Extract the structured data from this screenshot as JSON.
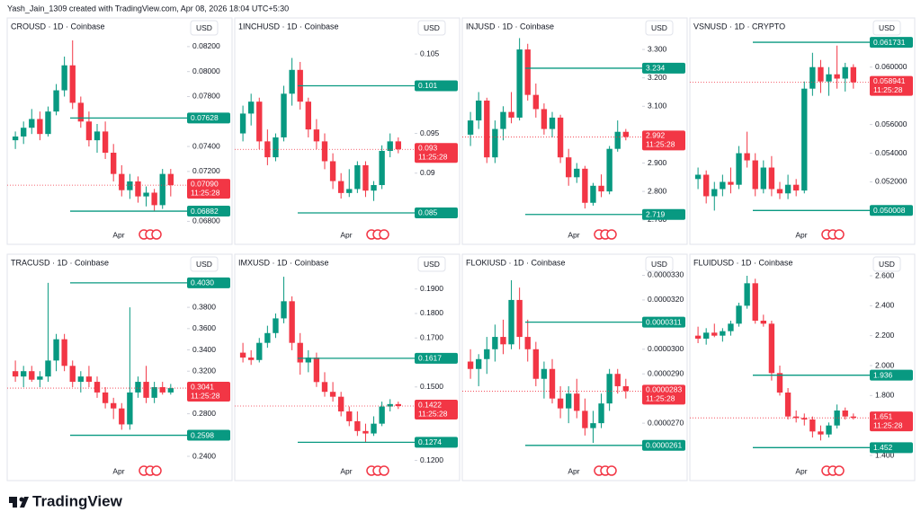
{
  "header": "Yash_Jain_1309 created with TradingView.com, Apr 08, 2026 18:04 UTC+5:30",
  "footer": "TradingView",
  "chart_data": [
    {
      "type": "candlestick",
      "title": "CROUSD · 1D · Coinbase",
      "currency": "USD",
      "x_label": "Apr",
      "up_color": "#089981",
      "down_color": "#f23645",
      "level_color": "#089981",
      "last_color": "#f23645",
      "countdown": "11:25:28",
      "ylim": [
        0.0676,
        0.083
      ],
      "yticks": [
        {
          "value": 0.082,
          "label": "0.08200"
        },
        {
          "value": 0.08,
          "label": "0.08000"
        },
        {
          "value": 0.078,
          "label": "0.07800"
        },
        {
          "value": 0.074,
          "label": "0.07400"
        },
        {
          "value": 0.072,
          "label": "0.07200"
        },
        {
          "value": 0.068,
          "label": "0.06800"
        }
      ],
      "levels": [
        0.07628,
        0.06882
      ],
      "last": {
        "value": 0.0709,
        "label": "0.07090"
      },
      "open": [
        0.0745,
        0.0748,
        0.0755,
        0.0762,
        0.075,
        0.0768,
        0.0785,
        0.0805,
        0.0775,
        0.076,
        0.0745,
        0.0752,
        0.0735,
        0.0718,
        0.0705,
        0.0712,
        0.07,
        0.0703,
        0.0693,
        0.0718
      ],
      "high": [
        0.0752,
        0.076,
        0.077,
        0.0768,
        0.0772,
        0.079,
        0.0812,
        0.0825,
        0.078,
        0.0768,
        0.0758,
        0.076,
        0.0742,
        0.0725,
        0.0718,
        0.0716,
        0.0708,
        0.0706,
        0.0722,
        0.0722
      ],
      "low": [
        0.0738,
        0.0742,
        0.075,
        0.0745,
        0.0748,
        0.0765,
        0.078,
        0.077,
        0.0755,
        0.074,
        0.0735,
        0.073,
        0.0712,
        0.07,
        0.0698,
        0.0695,
        0.0692,
        0.0688,
        0.069,
        0.07
      ],
      "close": [
        0.0748,
        0.0755,
        0.0762,
        0.075,
        0.0768,
        0.0785,
        0.0805,
        0.0775,
        0.076,
        0.0745,
        0.0752,
        0.0735,
        0.0718,
        0.0705,
        0.0712,
        0.07,
        0.0703,
        0.0693,
        0.0718,
        0.0709
      ]
    },
    {
      "type": "candlestick",
      "title": "1INCHUSD · 1D · Coinbase",
      "currency": "USD",
      "x_label": "Apr",
      "up_color": "#089981",
      "down_color": "#f23645",
      "level_color": "#089981",
      "last_color": "#f23645",
      "countdown": "11:25:28",
      "ylim": [
        0.0833,
        0.1075
      ],
      "yticks": [
        0.105,
        0.095,
        0.09
      ],
      "levels": [
        0.101,
        0.085
      ],
      "last": 0.093,
      "open": [
        0.095,
        0.0975,
        0.099,
        0.094,
        0.092,
        0.0945,
        0.1,
        0.103,
        0.099,
        0.0955,
        0.094,
        0.0915,
        0.089,
        0.0875,
        0.088,
        0.091,
        0.0878,
        0.0885,
        0.0928,
        0.094
      ],
      "high": [
        0.0985,
        0.1,
        0.0995,
        0.0955,
        0.095,
        0.101,
        0.1045,
        0.104,
        0.0995,
        0.0968,
        0.095,
        0.0925,
        0.09,
        0.0905,
        0.0915,
        0.0915,
        0.089,
        0.0935,
        0.095,
        0.0945
      ],
      "low": [
        0.094,
        0.096,
        0.093,
        0.091,
        0.0915,
        0.094,
        0.0985,
        0.098,
        0.0945,
        0.093,
        0.0905,
        0.088,
        0.0868,
        0.087,
        0.0875,
        0.087,
        0.0865,
        0.088,
        0.092,
        0.0925
      ],
      "close": [
        0.0975,
        0.099,
        0.094,
        0.092,
        0.0945,
        0.1,
        0.103,
        0.099,
        0.0955,
        0.094,
        0.0915,
        0.089,
        0.0875,
        0.088,
        0.091,
        0.0878,
        0.0885,
        0.0928,
        0.094,
        0.093
      ]
    },
    {
      "type": "candlestick",
      "title": "INJUSD · 1D · Coinbase",
      "currency": "USD",
      "x_label": "Apr",
      "up_color": "#089981",
      "down_color": "#f23645",
      "level_color": "#089981",
      "last_color": "#f23645",
      "countdown": "11:25:28",
      "ylim": [
        2.677,
        3.354
      ],
      "yticks": [
        {
          "value": 3.3,
          "label": "3.300"
        },
        {
          "value": 3.2,
          "label": "3.200"
        },
        {
          "value": 3.1,
          "label": "3.100"
        },
        {
          "value": 2.9,
          "label": "2.900"
        },
        {
          "value": 2.8,
          "label": "2.800"
        },
        {
          "value": 2.7,
          "label": "2.700"
        }
      ],
      "levels": [
        3.234,
        2.719
      ],
      "last": 2.992,
      "open": [
        3.0,
        3.05,
        3.12,
        2.92,
        3.02,
        3.08,
        3.06,
        3.3,
        3.14,
        3.09,
        3.02,
        3.06,
        2.92,
        2.85,
        2.88,
        2.76,
        2.82,
        2.8,
        2.95,
        3.01
      ],
      "high": [
        3.08,
        3.15,
        3.13,
        3.05,
        3.1,
        3.15,
        3.34,
        3.32,
        3.18,
        3.11,
        3.08,
        3.07,
        2.95,
        2.9,
        2.89,
        2.83,
        2.86,
        2.96,
        3.05,
        3.02
      ],
      "low": [
        2.96,
        3.02,
        2.9,
        2.9,
        2.98,
        3.04,
        3.05,
        3.12,
        3.06,
        3.0,
        2.99,
        2.9,
        2.82,
        2.83,
        2.74,
        2.75,
        2.78,
        2.79,
        2.94,
        2.98
      ],
      "close": [
        3.05,
        3.12,
        2.92,
        3.02,
        3.08,
        3.06,
        3.3,
        3.14,
        3.09,
        3.02,
        3.06,
        2.92,
        2.85,
        2.88,
        2.76,
        2.82,
        2.8,
        2.95,
        3.01,
        2.992
      ]
    },
    {
      "type": "candlestick",
      "title": "VSNUSD · 1D · CRYPTO",
      "currency": "USD",
      "x_label": "Apr",
      "up_color": "#089981",
      "down_color": "#f23645",
      "level_color": "#089981",
      "last_color": "#f23645",
      "countdown": "11:25:28",
      "ylim": [
        0.0489,
        0.0623
      ],
      "yticks": [
        {
          "value": 0.06,
          "label": "0.060000"
        },
        {
          "value": 0.056,
          "label": "0.056000"
        },
        {
          "value": 0.054,
          "label": "0.054000"
        },
        {
          "value": 0.052,
          "label": "0.052000"
        }
      ],
      "levels": [
        0.061731,
        0.050008
      ],
      "last": 0.058941,
      "open": [
        0.0522,
        0.0525,
        0.051,
        0.0515,
        0.052,
        0.0518,
        0.054,
        0.0535,
        0.0515,
        0.053,
        0.0515,
        0.0512,
        0.0518,
        0.0514,
        0.0585,
        0.06,
        0.059,
        0.0595,
        0.0592,
        0.06
      ],
      "high": [
        0.053,
        0.0528,
        0.052,
        0.0525,
        0.053,
        0.0545,
        0.0555,
        0.054,
        0.0535,
        0.0538,
        0.052,
        0.0525,
        0.0522,
        0.059,
        0.061,
        0.0605,
        0.06,
        0.0615,
        0.0603,
        0.0602
      ],
      "low": [
        0.0515,
        0.0505,
        0.05,
        0.051,
        0.0512,
        0.0515,
        0.053,
        0.051,
        0.0512,
        0.051,
        0.0508,
        0.0508,
        0.051,
        0.0512,
        0.058,
        0.0582,
        0.058,
        0.0585,
        0.0583,
        0.0585
      ],
      "close": [
        0.0525,
        0.051,
        0.0515,
        0.052,
        0.0518,
        0.054,
        0.0535,
        0.0515,
        0.053,
        0.0515,
        0.0512,
        0.0518,
        0.0514,
        0.0585,
        0.06,
        0.059,
        0.0595,
        0.0592,
        0.06,
        0.058941
      ]
    },
    {
      "type": "candlestick",
      "title": "TRACUSD · 1D · Coinbase",
      "currency": "USD",
      "x_label": "Apr",
      "up_color": "#089981",
      "down_color": "#f23645",
      "level_color": "#089981",
      "last_color": "#f23645",
      "countdown": "11:25:28",
      "ylim": [
        0.2341,
        0.4147
      ],
      "yticks": [
        {
          "value": 0.38,
          "label": "0.3800"
        },
        {
          "value": 0.36,
          "label": "0.3600"
        },
        {
          "value": 0.34,
          "label": "0.3400"
        },
        {
          "value": 0.32,
          "label": "0.3200"
        },
        {
          "value": 0.28,
          "label": "0.2800"
        },
        {
          "value": 0.24,
          "label": "0.2400"
        }
      ],
      "levels": [
        {
          "value": 0.403,
          "label": "0.4030"
        },
        0.2598
      ],
      "last": 0.3041,
      "open": [
        0.32,
        0.315,
        0.32,
        0.312,
        0.315,
        0.33,
        0.35,
        0.325,
        0.31,
        0.315,
        0.31,
        0.3,
        0.29,
        0.285,
        0.27,
        0.3,
        0.31,
        0.295,
        0.305,
        0.3
      ],
      "high": [
        0.33,
        0.325,
        0.325,
        0.32,
        0.403,
        0.355,
        0.355,
        0.33,
        0.32,
        0.325,
        0.315,
        0.305,
        0.295,
        0.29,
        0.38,
        0.315,
        0.325,
        0.31,
        0.31,
        0.308
      ],
      "low": [
        0.31,
        0.305,
        0.31,
        0.305,
        0.31,
        0.32,
        0.32,
        0.305,
        0.3,
        0.305,
        0.295,
        0.285,
        0.275,
        0.265,
        0.265,
        0.295,
        0.29,
        0.29,
        0.298,
        0.298
      ],
      "close": [
        0.315,
        0.32,
        0.312,
        0.315,
        0.33,
        0.35,
        0.325,
        0.31,
        0.315,
        0.31,
        0.3,
        0.29,
        0.285,
        0.27,
        0.3,
        0.31,
        0.295,
        0.305,
        0.3,
        0.3041
      ]
    },
    {
      "type": "candlestick",
      "title": "IMXUSD · 1D · Coinbase",
      "currency": "USD",
      "x_label": "Apr",
      "up_color": "#089981",
      "down_color": "#f23645",
      "level_color": "#089981",
      "last_color": "#f23645",
      "countdown": "11:25:28",
      "ylim": [
        0.1191,
        0.1976
      ],
      "yticks": [
        {
          "value": 0.19,
          "label": "0.1900"
        },
        {
          "value": 0.18,
          "label": "0.1800"
        },
        {
          "value": 0.17,
          "label": "0.1700"
        },
        {
          "value": 0.15,
          "label": "0.1500"
        },
        {
          "value": 0.12,
          "label": "0.1200"
        }
      ],
      "levels": [
        0.1617,
        0.1274
      ],
      "last": 0.1422,
      "open": [
        0.164,
        0.162,
        0.161,
        0.168,
        0.172,
        0.178,
        0.185,
        0.168,
        0.16,
        0.162,
        0.152,
        0.148,
        0.146,
        0.14,
        0.136,
        0.132,
        0.131,
        0.135,
        0.142,
        0.143
      ],
      "high": [
        0.168,
        0.165,
        0.17,
        0.175,
        0.18,
        0.195,
        0.187,
        0.172,
        0.165,
        0.164,
        0.156,
        0.152,
        0.148,
        0.142,
        0.14,
        0.135,
        0.138,
        0.144,
        0.145,
        0.144
      ],
      "low": [
        0.16,
        0.159,
        0.16,
        0.166,
        0.17,
        0.176,
        0.165,
        0.155,
        0.156,
        0.15,
        0.146,
        0.144,
        0.138,
        0.134,
        0.13,
        0.1274,
        0.13,
        0.134,
        0.14,
        0.141
      ],
      "close": [
        0.162,
        0.161,
        0.168,
        0.172,
        0.178,
        0.185,
        0.168,
        0.16,
        0.162,
        0.152,
        0.148,
        0.146,
        0.14,
        0.136,
        0.132,
        0.131,
        0.135,
        0.142,
        0.143,
        0.1422
      ]
    },
    {
      "type": "candlestick",
      "title": "FLOKIUSD · 1D · Coinbase",
      "currency": "USD",
      "x_label": "Apr",
      "up_color": "#089981",
      "down_color": "#f23645",
      "level_color": "#089981",
      "last_color": "#f23645",
      "countdown": "11:25:28",
      "ylim": [
        2.54e-05,
        3.32e-05
      ],
      "yticks": [
        {
          "value": 3.3e-05,
          "label": "0.0000330"
        },
        {
          "value": 3.2e-05,
          "label": "0.0000320"
        },
        {
          "value": 3e-05,
          "label": "0.0000300"
        },
        {
          "value": 2.9e-05,
          "label": "0.0000290"
        },
        {
          "value": 2.7e-05,
          "label": "0.0000270"
        }
      ],
      "levels": [
        3.11e-05,
        2.61e-05
      ],
      "last": 2.83e-05,
      "open": [
        2.95e-05,
        2.92e-05,
        2.96e-05,
        3e-05,
        3.05e-05,
        3.02e-05,
        3.2e-05,
        3.05e-05,
        3e-05,
        2.88e-05,
        2.92e-05,
        2.8e-05,
        2.76e-05,
        2.82e-05,
        2.75e-05,
        2.68e-05,
        2.7e-05,
        2.78e-05,
        2.9e-05,
        2.85e-05
      ],
      "high": [
        3e-05,
        2.98e-05,
        3.05e-05,
        3.1e-05,
        3.12e-05,
        3.28e-05,
        3.25e-05,
        3.12e-05,
        3.03e-05,
        2.95e-05,
        2.96e-05,
        2.85e-05,
        2.85e-05,
        2.88e-05,
        2.8e-05,
        2.75e-05,
        2.82e-05,
        2.92e-05,
        2.92e-05,
        2.88e-05
      ],
      "low": [
        2.88e-05,
        2.85e-05,
        2.9e-05,
        2.95e-05,
        2.98e-05,
        3e-05,
        3e-05,
        2.95e-05,
        2.85e-05,
        2.8e-05,
        2.78e-05,
        2.72e-05,
        2.7e-05,
        2.72e-05,
        2.65e-05,
        2.62e-05,
        2.68e-05,
        2.75e-05,
        2.82e-05,
        2.8e-05
      ],
      "close": [
        2.92e-05,
        2.96e-05,
        3e-05,
        3.05e-05,
        3.02e-05,
        3.2e-05,
        3.05e-05,
        3e-05,
        2.88e-05,
        2.92e-05,
        2.8e-05,
        2.76e-05,
        2.82e-05,
        2.75e-05,
        2.68e-05,
        2.7e-05,
        2.78e-05,
        2.9e-05,
        2.85e-05,
        2.83e-05
      ]
    },
    {
      "type": "candlestick",
      "title": "FLUIDUSD · 1D · Coinbase",
      "currency": "USD",
      "x_label": "Apr",
      "up_color": "#089981",
      "down_color": "#f23645",
      "level_color": "#089981",
      "last_color": "#f23645",
      "countdown": "11:25:28",
      "ylim": [
        1.352,
        2.636
      ],
      "yticks": [
        {
          "value": 2.6,
          "label": "2.600"
        },
        {
          "value": 2.4,
          "label": "2.400"
        },
        {
          "value": 2.2,
          "label": "2.200"
        },
        {
          "value": 2,
          "label": "2.000"
        },
        {
          "value": 1.8,
          "label": "1.800"
        },
        {
          "value": 1.4,
          "label": "1.400"
        }
      ],
      "levels": [
        1.936,
        1.452
      ],
      "last": 1.651,
      "open": [
        2.2,
        2.18,
        2.22,
        2.2,
        2.23,
        2.28,
        2.4,
        2.55,
        2.3,
        2.28,
        1.95,
        1.82,
        1.66,
        1.65,
        1.64,
        1.56,
        1.54,
        1.6,
        1.7,
        1.66
      ],
      "high": [
        2.26,
        2.25,
        2.28,
        2.25,
        2.3,
        2.42,
        2.6,
        2.58,
        2.34,
        2.3,
        2.0,
        1.85,
        1.7,
        1.68,
        1.66,
        1.6,
        1.62,
        1.74,
        1.72,
        1.68
      ],
      "low": [
        2.15,
        2.14,
        2.19,
        2.16,
        2.2,
        2.26,
        2.38,
        2.28,
        2.26,
        1.9,
        1.8,
        1.64,
        1.62,
        1.6,
        1.52,
        1.5,
        1.52,
        1.58,
        1.64,
        1.64
      ],
      "close": [
        2.18,
        2.22,
        2.2,
        2.23,
        2.28,
        2.4,
        2.55,
        2.3,
        2.28,
        1.95,
        1.82,
        1.66,
        1.65,
        1.64,
        1.56,
        1.54,
        1.6,
        1.7,
        1.66,
        1.651
      ]
    }
  ]
}
